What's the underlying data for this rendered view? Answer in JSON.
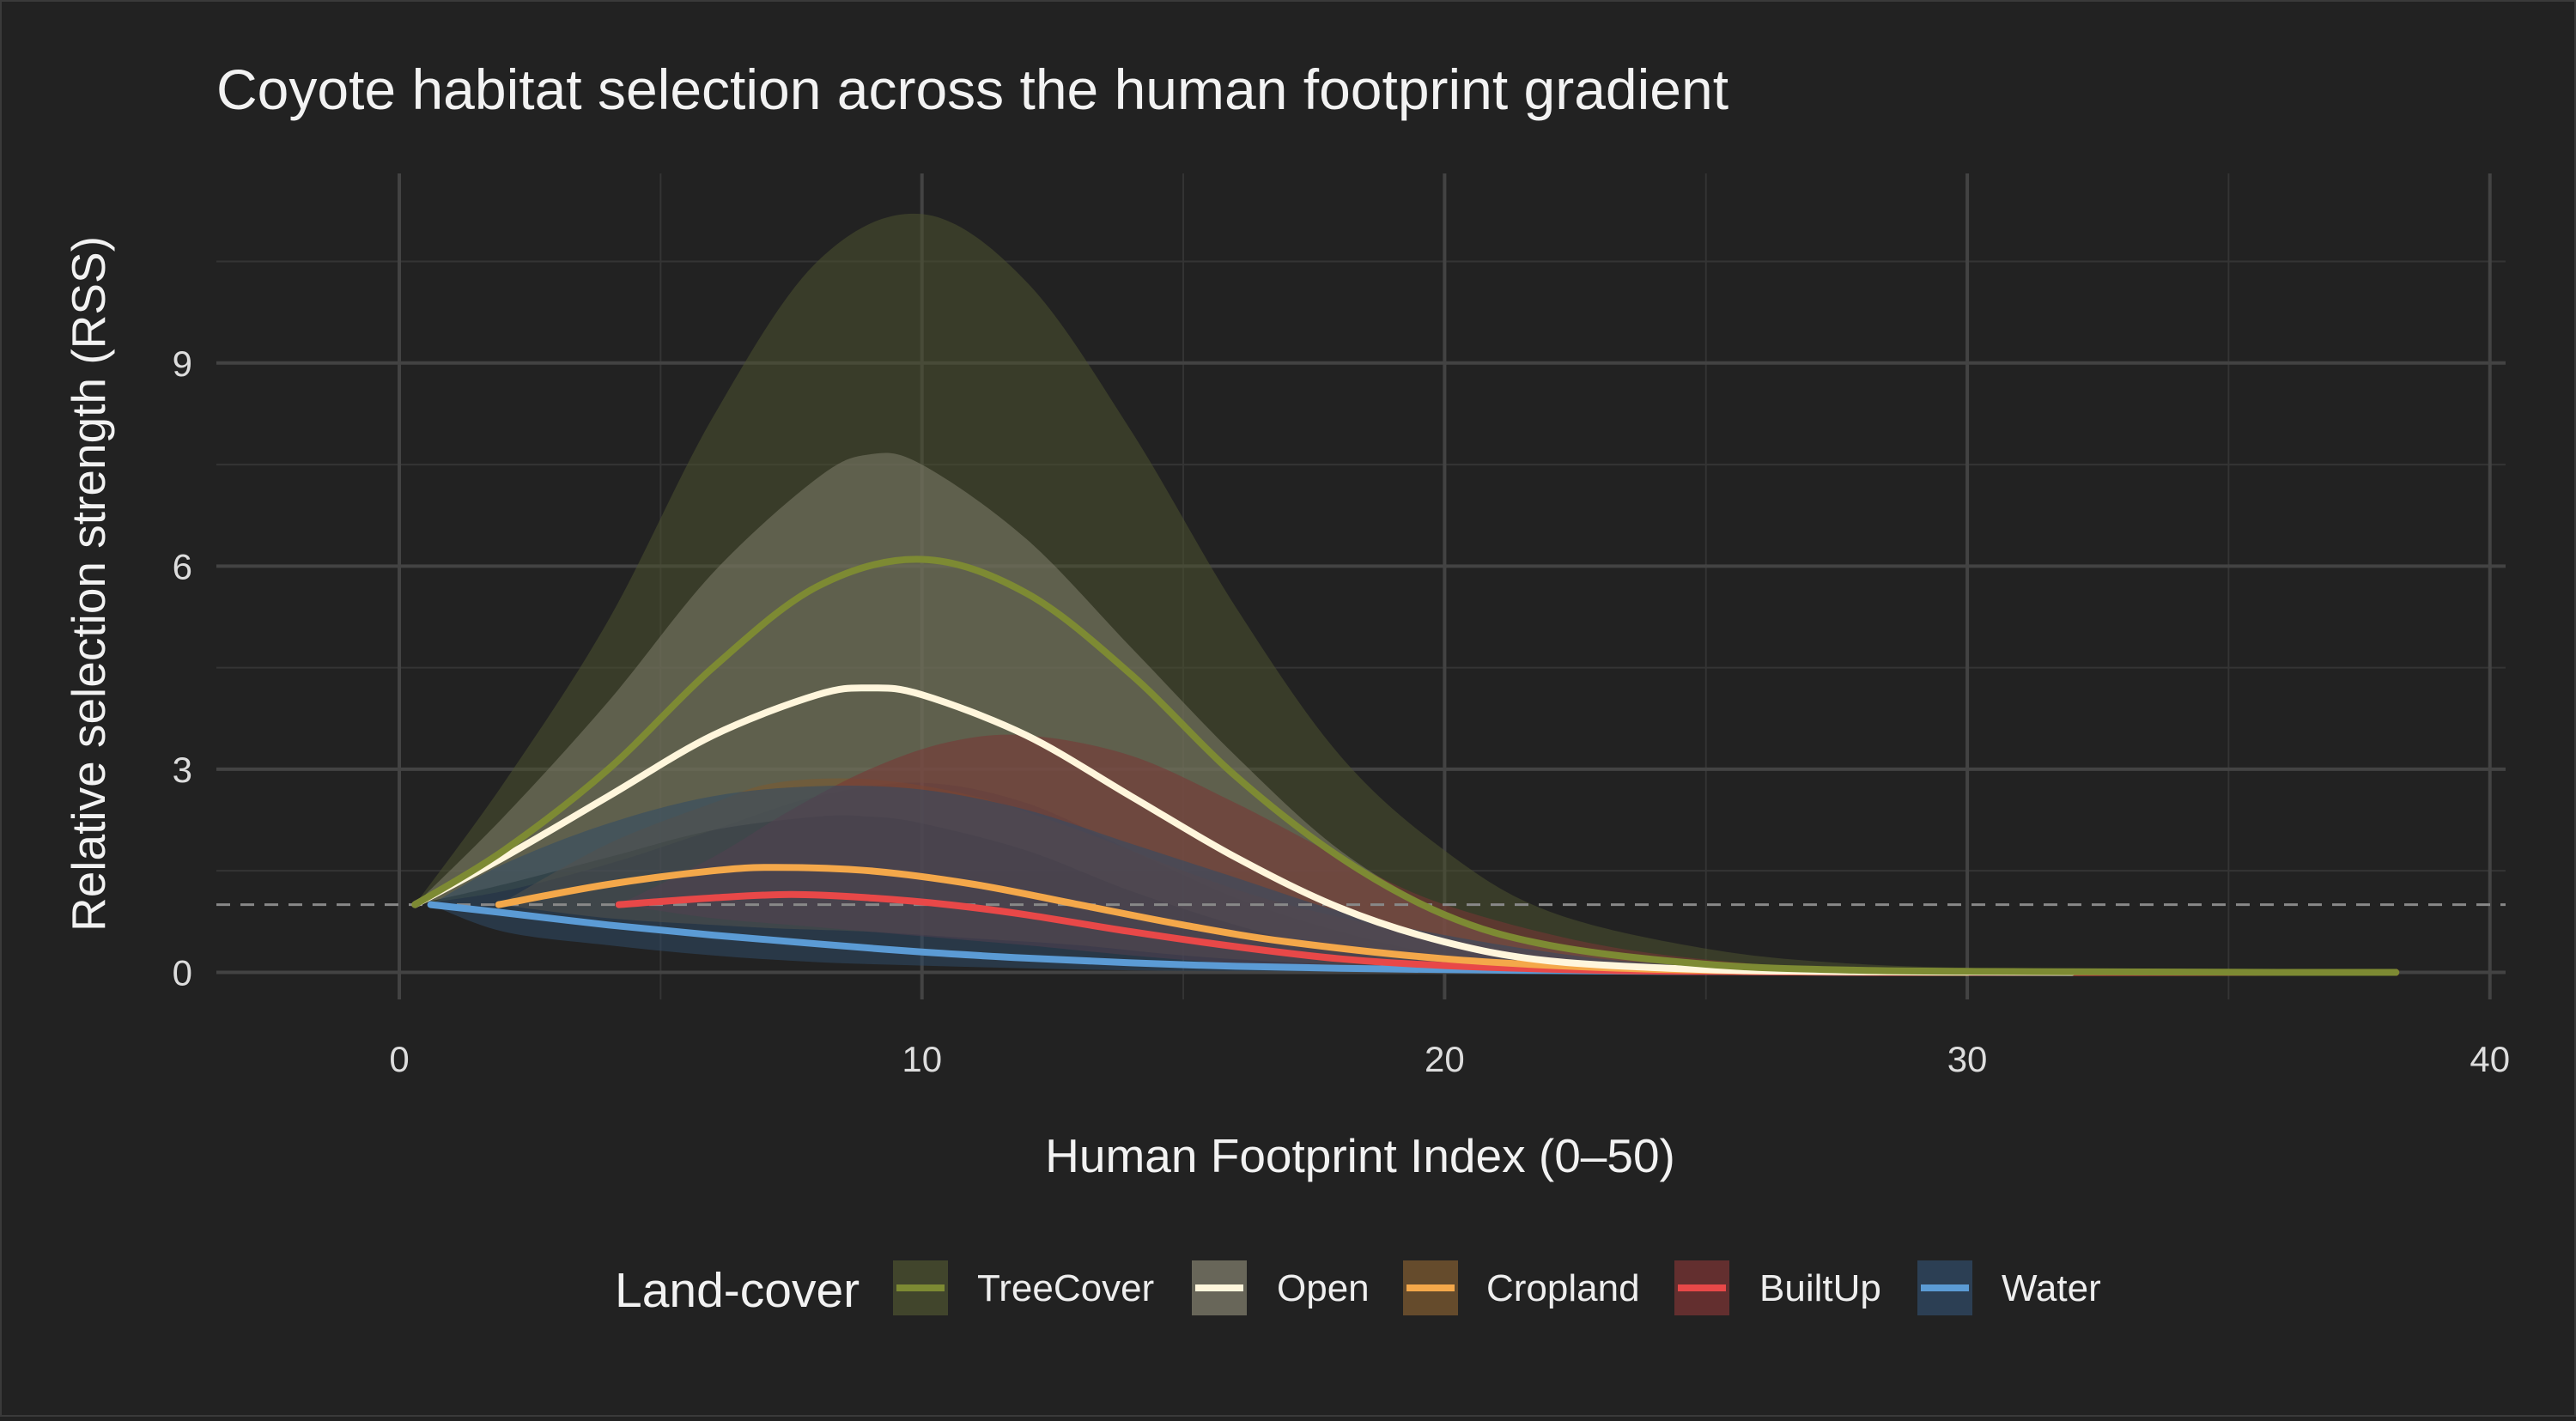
{
  "chart_data": {
    "type": "line",
    "title": "Coyote habitat selection across the human footprint gradient",
    "xlabel": "Human Footprint Index (0–50)",
    "ylabel": "Relative selection strength (RSS)",
    "xlim": [
      -3.5,
      40.3
    ],
    "ylim": [
      -0.4,
      11.8
    ],
    "x_ticks": [
      0,
      10,
      20,
      30,
      40
    ],
    "y_ticks": [
      0,
      3,
      6,
      9
    ],
    "x_minor": [
      5,
      15,
      25,
      35
    ],
    "y_minor": [
      1.5,
      4.5,
      7.5,
      10.5
    ],
    "grid": true,
    "reference_line": {
      "y": 1,
      "style": "dashed",
      "color": "#888888"
    },
    "legend": {
      "title": "Land-cover",
      "position": "bottom"
    },
    "series": [
      {
        "name": "TreeCover",
        "color": "#7d8a33",
        "band_color": "#4c5230",
        "x": [
          0.3,
          2,
          4,
          6,
          8,
          10,
          12,
          14,
          16,
          18,
          20,
          22,
          25,
          28,
          32,
          36,
          38.2
        ],
        "y": [
          1.0,
          1.8,
          3.0,
          4.5,
          5.7,
          6.1,
          5.6,
          4.4,
          2.9,
          1.7,
          0.85,
          0.4,
          0.12,
          0.03,
          0.01,
          0.0,
          0.0
        ],
        "lower": [
          1.0,
          1.2,
          1.6,
          2.1,
          2.6,
          2.8,
          2.5,
          1.8,
          1.1,
          0.6,
          0.25,
          0.1,
          0.02,
          0.0,
          0.0,
          0.0,
          0.0
        ],
        "upper": [
          1.0,
          2.8,
          5.2,
          8.2,
          10.5,
          11.2,
          10.2,
          8.0,
          5.4,
          3.2,
          1.8,
          0.9,
          0.35,
          0.12,
          0.04,
          0.01,
          0.0
        ]
      },
      {
        "name": "Open",
        "color": "#fff6dc",
        "band_color": "#807e6c",
        "x": [
          0.3,
          2,
          4,
          6,
          8,
          9,
          10,
          12,
          14,
          16,
          18,
          20,
          22,
          25,
          28,
          32
        ],
        "y": [
          1.0,
          1.7,
          2.6,
          3.5,
          4.1,
          4.2,
          4.1,
          3.5,
          2.6,
          1.7,
          0.95,
          0.45,
          0.17,
          0.04,
          0.01,
          0.0
        ],
        "lower": [
          1.0,
          1.3,
          1.7,
          2.1,
          2.3,
          2.3,
          2.2,
          1.8,
          1.2,
          0.7,
          0.3,
          0.12,
          0.04,
          0.0,
          0.0,
          0.0
        ],
        "upper": [
          1.0,
          2.3,
          4.0,
          5.9,
          7.3,
          7.65,
          7.5,
          6.4,
          4.8,
          3.2,
          1.8,
          0.9,
          0.4,
          0.1,
          0.02,
          0.0
        ]
      },
      {
        "name": "Cropland",
        "color": "#f4a84a",
        "band_color": "#7c5a30",
        "x": [
          1.9,
          4,
          6,
          7.2,
          9,
          11,
          13,
          15,
          17,
          20,
          23,
          26,
          30
        ],
        "y": [
          1.0,
          1.3,
          1.5,
          1.55,
          1.5,
          1.3,
          1.0,
          0.7,
          0.45,
          0.2,
          0.07,
          0.02,
          0.0
        ],
        "lower": [
          1.0,
          0.8,
          0.7,
          0.65,
          0.6,
          0.5,
          0.4,
          0.25,
          0.15,
          0.05,
          0.01,
          0.0,
          0.0
        ],
        "upper": [
          1.0,
          1.9,
          2.5,
          2.8,
          2.85,
          2.6,
          2.1,
          1.5,
          1.0,
          0.5,
          0.2,
          0.06,
          0.01
        ]
      },
      {
        "name": "BuiltUp",
        "color": "#e84848",
        "band_color": "#7a3434",
        "x": [
          4.2,
          6,
          7.5,
          9,
          10.5,
          12,
          14,
          16,
          18,
          20,
          23,
          26,
          28.5,
          32,
          35,
          38.2
        ],
        "y": [
          1.0,
          1.1,
          1.15,
          1.1,
          1.0,
          0.85,
          0.6,
          0.38,
          0.2,
          0.1,
          0.03,
          0.01,
          0.0,
          0.0,
          0.0,
          0.0
        ],
        "lower": [
          1.0,
          0.8,
          0.7,
          0.6,
          0.5,
          0.4,
          0.25,
          0.13,
          0.06,
          0.02,
          0.0,
          0.0,
          0.0,
          0.0,
          0.0,
          0.0
        ],
        "upper": [
          1.0,
          1.7,
          2.4,
          3.0,
          3.4,
          3.5,
          3.2,
          2.5,
          1.7,
          1.0,
          0.4,
          0.12,
          0.05,
          0.01,
          0.0,
          0.0
        ]
      },
      {
        "name": "Water",
        "color": "#5b9bd5",
        "band_color": "#304a66",
        "x": [
          0.6,
          2,
          4,
          6,
          8,
          10,
          12,
          14,
          16,
          18,
          20,
          23,
          26,
          28.3
        ],
        "y": [
          1.0,
          0.88,
          0.7,
          0.55,
          0.42,
          0.3,
          0.21,
          0.14,
          0.09,
          0.06,
          0.04,
          0.02,
          0.01,
          0.0
        ],
        "lower": [
          1.0,
          0.6,
          0.4,
          0.25,
          0.15,
          0.1,
          0.06,
          0.03,
          0.02,
          0.01,
          0.0,
          0.0,
          0.0,
          0.0
        ],
        "upper": [
          1.0,
          1.6,
          2.2,
          2.6,
          2.75,
          2.7,
          2.4,
          1.9,
          1.4,
          0.9,
          0.55,
          0.2,
          0.06,
          0.01
        ]
      }
    ]
  }
}
